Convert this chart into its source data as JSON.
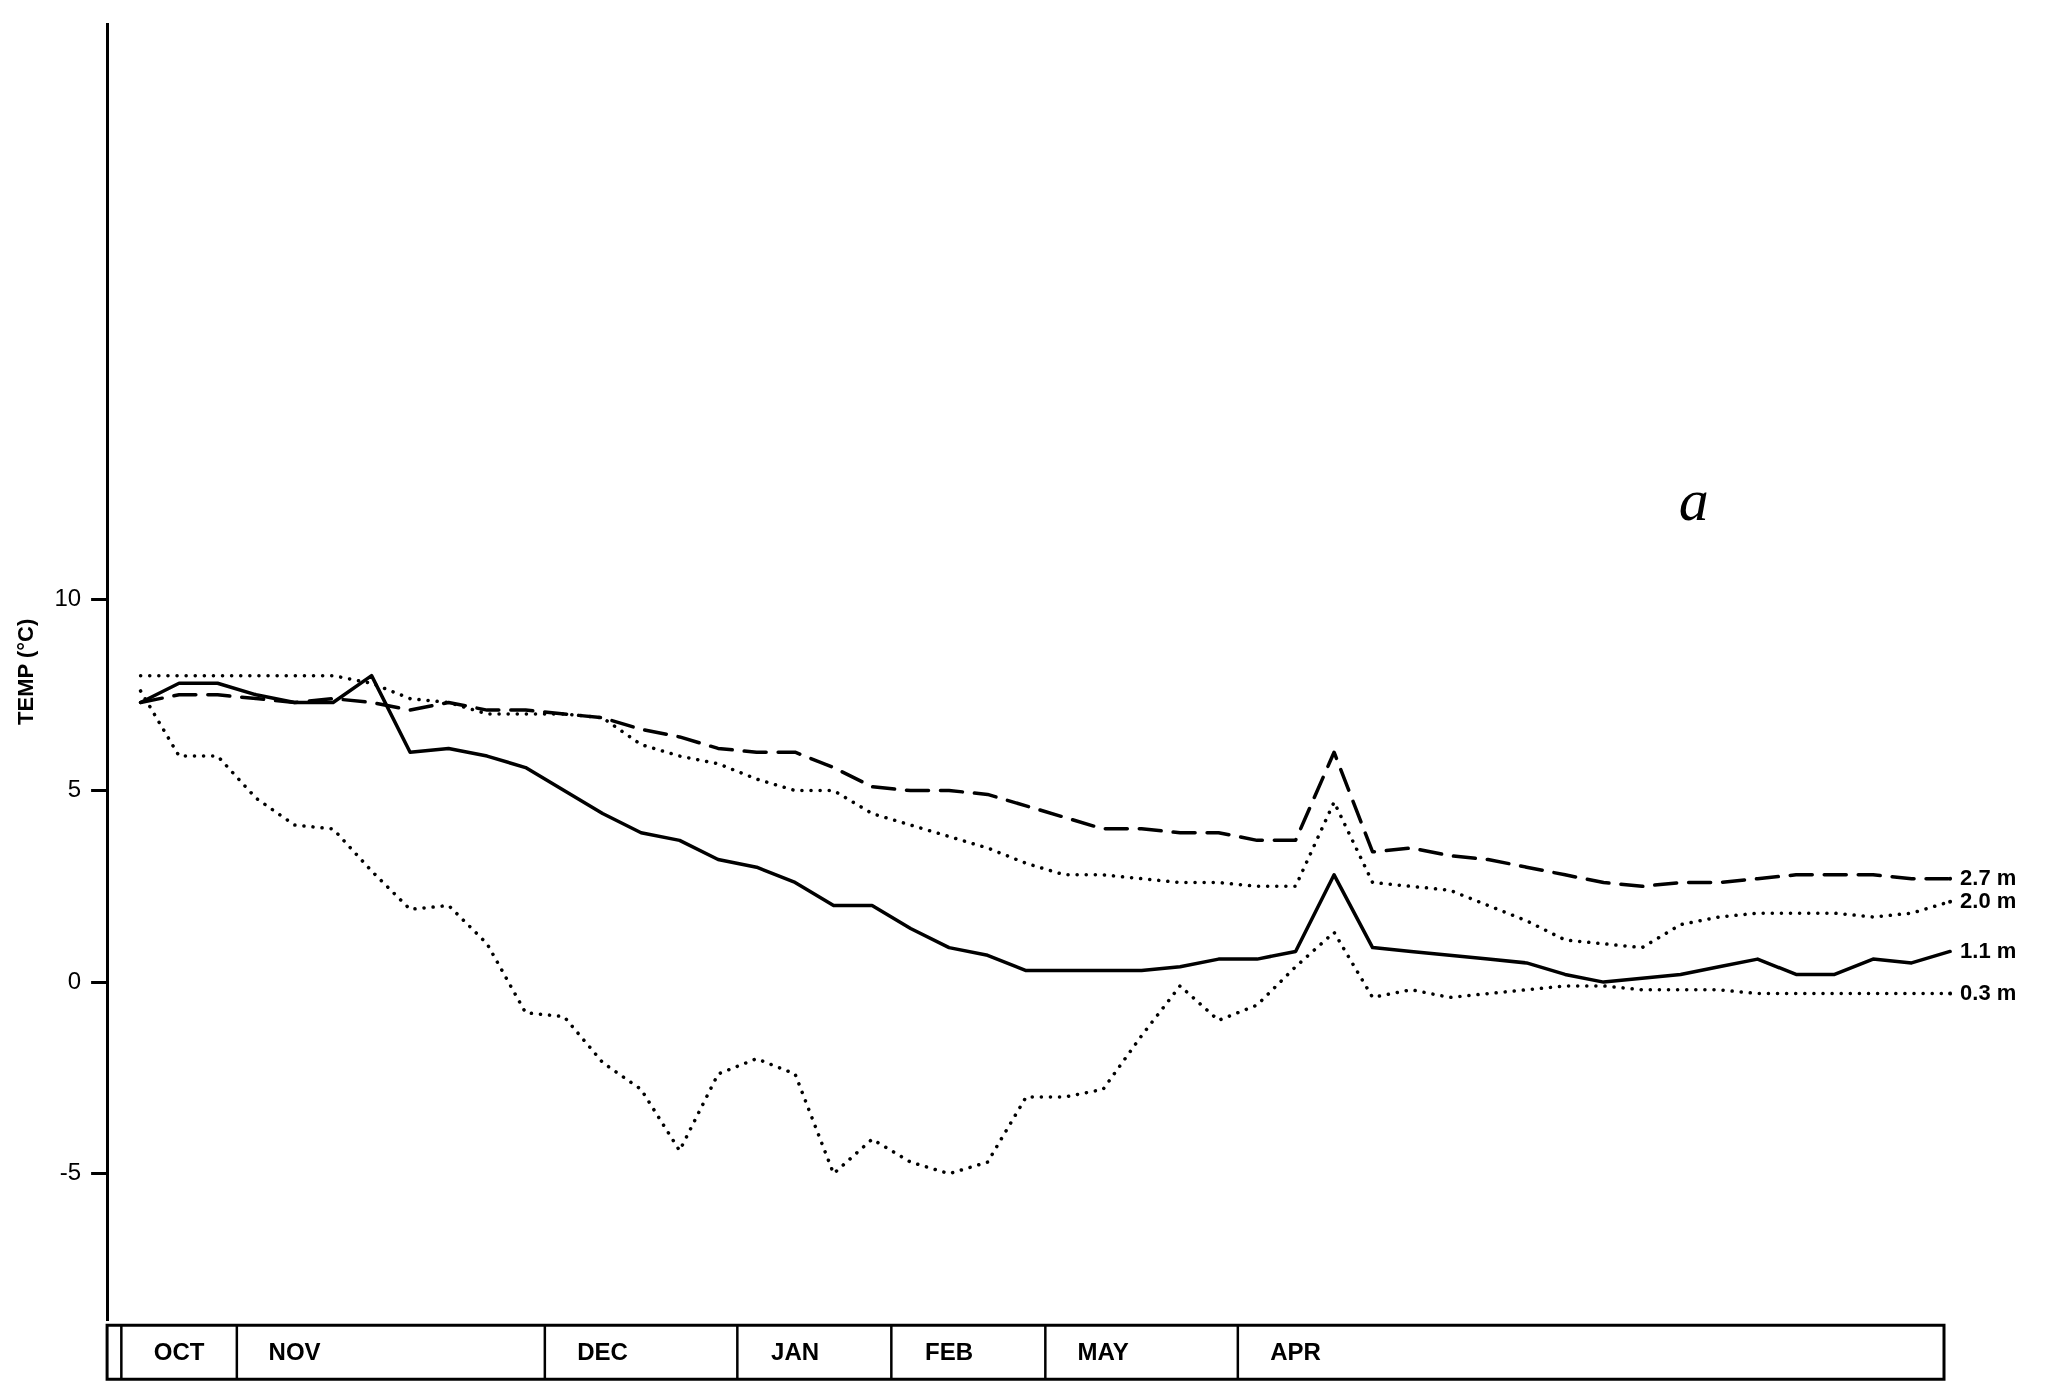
{
  "chart_data": {
    "type": "line",
    "ylabel": "TEMP (°C)",
    "annotations": [
      "a"
    ],
    "categories": [
      null,
      "OCT",
      null,
      null,
      "NOV",
      null,
      null,
      null,
      null,
      null,
      null,
      null,
      "DEC",
      null,
      null,
      null,
      null,
      "JAN",
      null,
      null,
      null,
      "FEB",
      null,
      null,
      null,
      "MAY",
      null,
      null,
      null,
      null,
      "APR",
      null,
      null,
      null,
      null,
      null,
      null,
      null,
      null,
      null,
      null,
      null,
      null,
      null,
      null,
      null,
      null,
      null
    ],
    "ylim": [
      -8.8,
      25
    ],
    "yticks": [
      -5,
      0,
      5,
      10
    ],
    "grid": false,
    "legend": false,
    "marker": "none",
    "series": [
      {
        "name": "2.7 m",
        "color": "#000000",
        "line_style": "dashed",
        "values": [
          7.3,
          7.5,
          7.5,
          7.4,
          7.3,
          7.4,
          7.3,
          7.1,
          7.3,
          7.1,
          7.1,
          7.0,
          6.9,
          6.6,
          6.4,
          6.1,
          6.0,
          6.0,
          5.6,
          5.1,
          5.0,
          5.0,
          4.9,
          4.6,
          4.3,
          4.0,
          4.0,
          3.9,
          3.9,
          3.7,
          3.7,
          6.0,
          3.4,
          3.5,
          3.3,
          3.2,
          3.0,
          2.8,
          2.6,
          2.5,
          2.6,
          2.6,
          2.7,
          2.8,
          2.8,
          2.8,
          2.7,
          2.7
        ]
      },
      {
        "name": "2.0 m",
        "color": "#000000",
        "line_style": "dotted",
        "values": [
          8.0,
          8.0,
          8.0,
          8.0,
          8.0,
          8.0,
          7.8,
          7.4,
          7.3,
          7.0,
          7.0,
          7.0,
          6.9,
          6.2,
          5.9,
          5.7,
          5.3,
          5.0,
          5.0,
          4.4,
          4.1,
          3.8,
          3.5,
          3.1,
          2.8,
          2.8,
          2.7,
          2.6,
          2.6,
          2.5,
          2.5,
          4.7,
          2.6,
          2.5,
          2.4,
          2.0,
          1.6,
          1.1,
          1.0,
          0.9,
          1.5,
          1.7,
          1.8,
          1.8,
          1.8,
          1.7,
          1.8,
          2.1
        ]
      },
      {
        "name": "1.1 m",
        "color": "#000000",
        "line_style": "solid",
        "values": [
          7.3,
          7.8,
          7.8,
          7.5,
          7.3,
          7.3,
          8.0,
          6.0,
          6.1,
          5.9,
          5.6,
          5.0,
          4.4,
          3.9,
          3.7,
          3.2,
          3.0,
          2.6,
          2.0,
          2.0,
          1.4,
          0.9,
          0.7,
          0.3,
          0.3,
          0.3,
          0.3,
          0.4,
          0.6,
          0.6,
          0.8,
          2.8,
          0.9,
          0.8,
          0.7,
          0.6,
          0.5,
          0.2,
          0.0,
          0.1,
          0.2,
          0.4,
          0.6,
          0.2,
          0.2,
          0.6,
          0.5,
          0.8
        ]
      },
      {
        "name": "0.3 m",
        "color": "#000000",
        "line_style": "dotted",
        "values": [
          7.6,
          5.9,
          5.9,
          4.8,
          4.1,
          4.0,
          2.9,
          1.9,
          2.0,
          1.0,
          -0.8,
          -0.9,
          -2.1,
          -2.8,
          -4.4,
          -2.4,
          -2.0,
          -2.4,
          -5.0,
          -4.1,
          -4.7,
          -5.0,
          -4.7,
          -3.0,
          -3.0,
          -2.8,
          -1.4,
          -0.1,
          -1.0,
          -0.6,
          0.4,
          1.3,
          -0.4,
          -0.2,
          -0.4,
          -0.3,
          -0.2,
          -0.1,
          -0.1,
          -0.2,
          -0.2,
          -0.2,
          -0.3,
          -0.3,
          -0.3,
          -0.3,
          -0.3,
          -0.3
        ]
      }
    ]
  }
}
